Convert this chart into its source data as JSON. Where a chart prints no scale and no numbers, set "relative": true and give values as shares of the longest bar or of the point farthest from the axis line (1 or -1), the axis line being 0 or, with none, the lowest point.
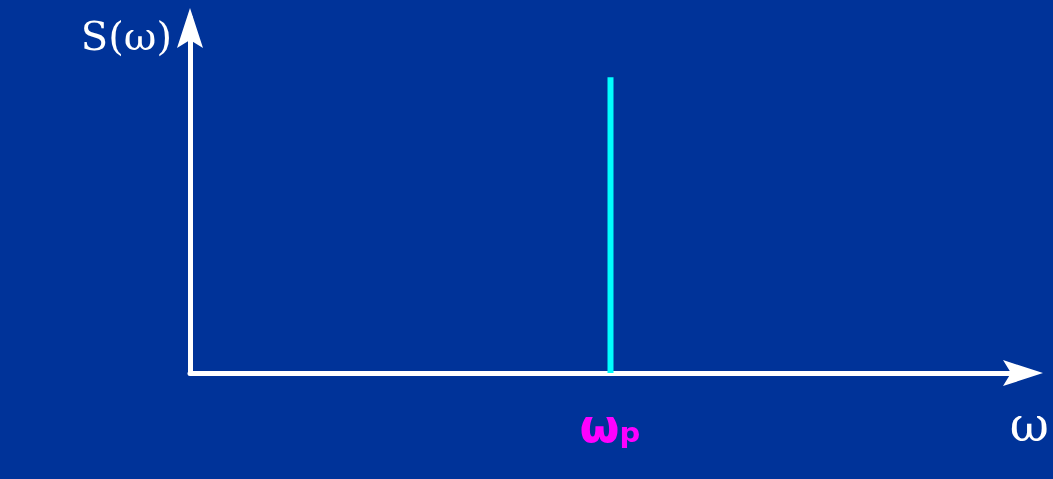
{
  "chart_data": {
    "type": "bar",
    "relative": true,
    "annotations": [
      "S(ω)",
      "ω"
    ],
    "categories": [
      "ωₚ"
    ],
    "values": [
      1
    ],
    "color": "#00ffff"
  }
}
